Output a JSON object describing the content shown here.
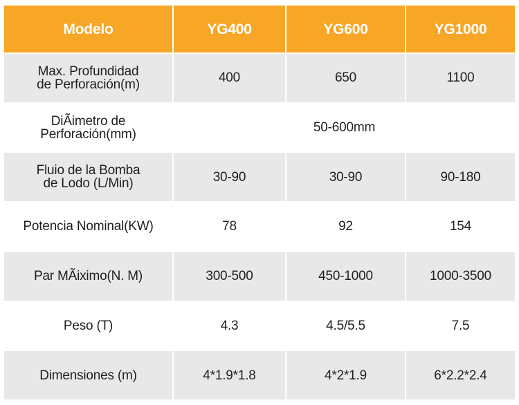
{
  "header": {
    "model_label": "Modelo",
    "models": [
      "YG400",
      "YG600",
      "YG1000"
    ]
  },
  "rows": [
    {
      "label": "Max. Profundidad\nde Perforación(m)",
      "values": [
        "400",
        "650",
        "1100"
      ]
    },
    {
      "label": "DiÃimetro de\nPerforación(mm)",
      "merged_value": "50-600mm"
    },
    {
      "label": "Fluio de la Bomba\nde Lodo (L/Min)",
      "values": [
        "30-90",
        "30-90",
        "90-180"
      ]
    },
    {
      "label": "Potencia Nominal(KW)",
      "values": [
        "78",
        "92",
        "154"
      ]
    },
    {
      "label": "Par MÃiximo(N. M)",
      "values": [
        "300-500",
        "450-1000",
        "1000-3500"
      ]
    },
    {
      "label": "Peso (T)",
      "values": [
        "4.3",
        "4.5/5.5",
        "7.5"
      ]
    },
    {
      "label": "Dimensiones (m)",
      "values": [
        "4*1.9*1.8",
        "4*2*1.9",
        "6*2.2*2.4"
      ]
    }
  ],
  "colors": {
    "header_bg": "#f7a626",
    "header_text": "#ffffff",
    "row_alt_bg": "#e8e8e8",
    "row_bg": "#ffffff",
    "text": "#1f1f1f"
  }
}
